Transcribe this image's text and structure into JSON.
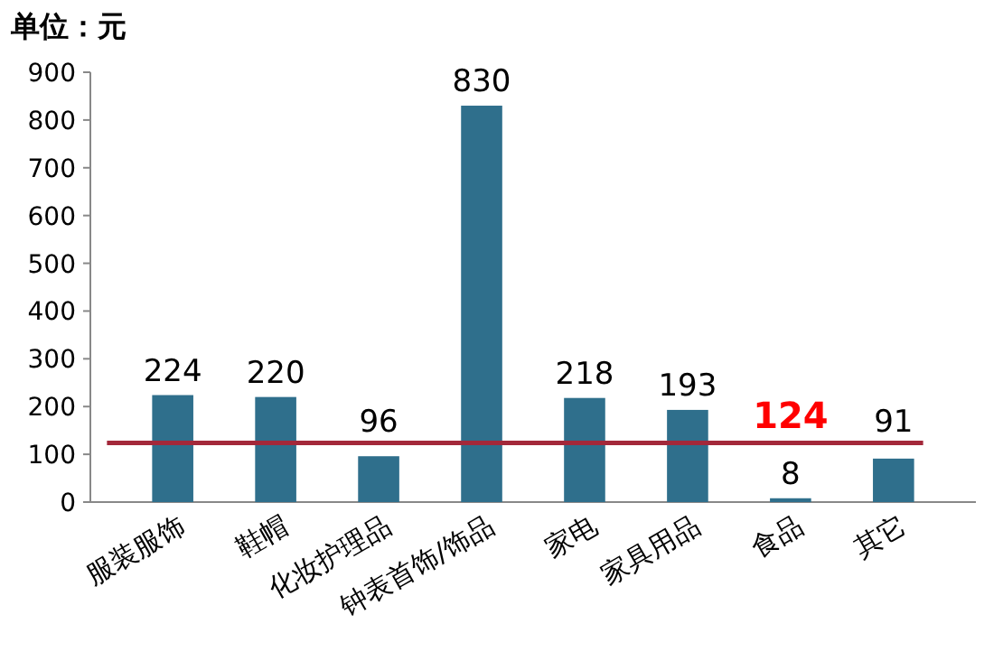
{
  "chart_data": {
    "type": "bar",
    "ylabel": "单位：元",
    "categories": [
      "服装服饰",
      "鞋帽",
      "化妆护理品",
      "钟表首饰/饰品",
      "家电",
      "家具用品",
      "食品",
      "其它"
    ],
    "values": [
      224,
      220,
      96,
      830,
      218,
      193,
      8,
      91
    ],
    "color": "#2f6f8c",
    "ylim": [
      0,
      900
    ],
    "yticks": [
      0,
      100,
      200,
      300,
      400,
      500,
      600,
      700,
      800,
      900
    ],
    "data_labels": true,
    "ref_lines": [
      {
        "axis": "y",
        "value": 124,
        "label": "124",
        "color": "#a3283a"
      }
    ]
  }
}
